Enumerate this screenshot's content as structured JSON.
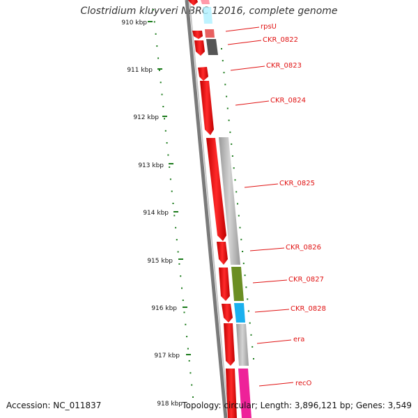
{
  "title": "Clostridium kluyveri NBRC 12016, complete genome",
  "footer": {
    "accession": "Accession: NC_011837",
    "summary": "Topology: circular; Length: 3,896,121 bp; Genes: 3,549"
  },
  "scale": {
    "ticks": [
      "910 kbp",
      "911 kbp",
      "912 kbp",
      "913 kbp",
      "914 kbp",
      "915 kbp",
      "916 kbp",
      "917 kbp",
      "918 kbp"
    ]
  },
  "genes": [
    {
      "name": "rpsU",
      "color": "#e86060"
    },
    {
      "name": "CKR_0822",
      "color": "#555555"
    },
    {
      "name": "CKR_0823",
      "color": "#ee1111"
    },
    {
      "name": "CKR_0824",
      "color": "#ee1111"
    },
    {
      "name": "CKR_0825",
      "color": "#b8b8b8"
    },
    {
      "name": "CKR_0826",
      "color": "#ee1111"
    },
    {
      "name": "CKR_0827",
      "color": "#6b8e23"
    },
    {
      "name": "CKR_0828",
      "color": "#1ab0ee"
    },
    {
      "name": "era",
      "color": "#b8b8b8"
    },
    {
      "name": "recO",
      "color": "#ee2299"
    }
  ],
  "colors": {
    "tick": "#1a7a1a",
    "backbone": "#777777",
    "label": "#e01010",
    "cds": "#ee1111"
  }
}
